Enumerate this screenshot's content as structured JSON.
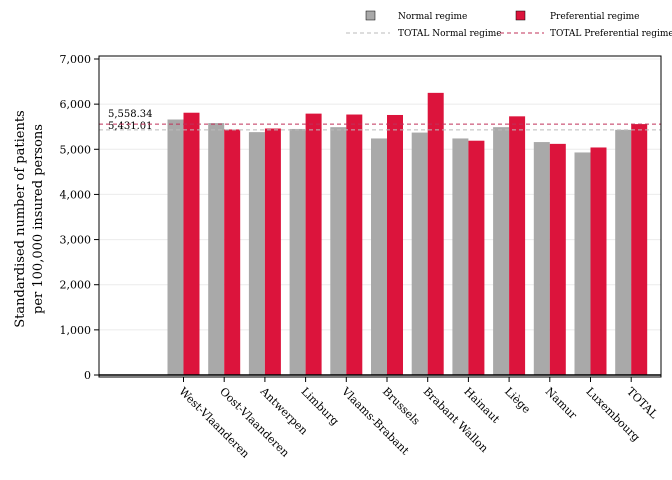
{
  "chart_data": {
    "type": "bar",
    "ylabel_lines": [
      "Standardised number of patients",
      "per 100,000 insured persons"
    ],
    "ylim": [
      0,
      7000
    ],
    "yticks": [
      0,
      1000,
      2000,
      3000,
      4000,
      5000,
      6000,
      7000
    ],
    "ytick_labels": [
      "0",
      "1,000",
      "2,000",
      "3,000",
      "4,000",
      "5,000",
      "6,000",
      "7,000"
    ],
    "categories": [
      "West-Vlaanderen",
      "Oost-Vlaanderen",
      "Antwerpen",
      "Limburg",
      "Vlaams-Brabant",
      "Brussels",
      "Brabant Wallon",
      "Hainaut",
      "Liège",
      "Namur",
      "Luxembourg",
      "TOTAL"
    ],
    "series": [
      {
        "name": "Normal regime",
        "color": "#a9a9a9",
        "values": [
          5660,
          5580,
          5380,
          5450,
          5490,
          5240,
          5370,
          5240,
          5490,
          5160,
          4930,
          5431
        ]
      },
      {
        "name": "Preferential regime",
        "color": "#dc143c",
        "values": [
          5810,
          5440,
          5460,
          5790,
          5770,
          5760,
          6250,
          5190,
          5730,
          5120,
          5040,
          5558
        ]
      }
    ],
    "reference_lines": [
      {
        "name": "TOTAL Normal regime",
        "value": 5431.01,
        "label": "5,431.01",
        "color": "#bbbbbb"
      },
      {
        "name": "TOTAL Preferential regime",
        "value": 5558.34,
        "label": "5,558.34",
        "color": "#c0305a"
      }
    ],
    "grid": true,
    "legend_position": "top-right"
  }
}
